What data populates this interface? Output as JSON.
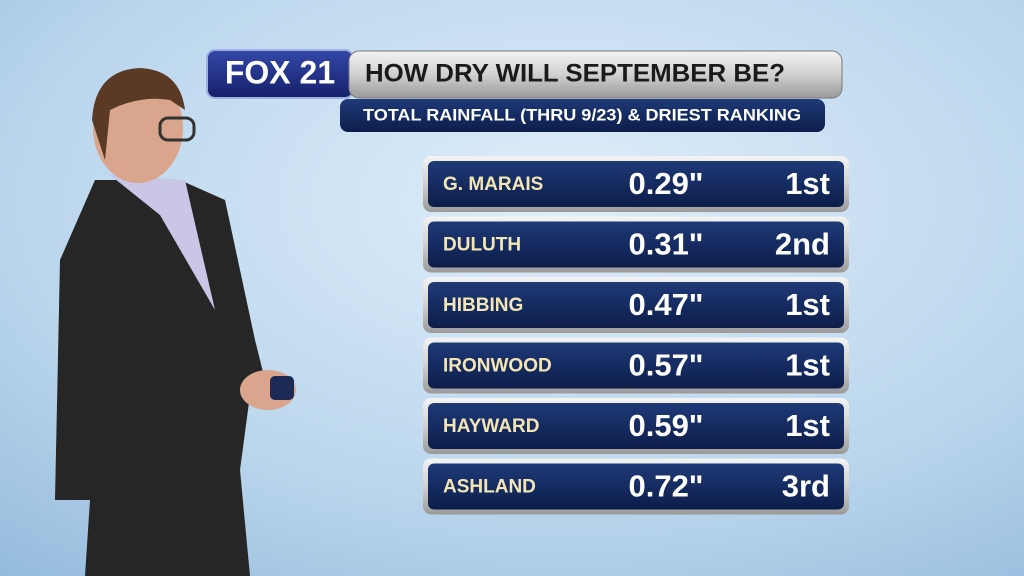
{
  "header": {
    "logo": "FOX 21",
    "title": "HOW DRY WILL SEPTEMBER BE?",
    "subtitle": "TOTAL RAINFALL (THRU 9/23) & DRIEST RANKING"
  },
  "table": {
    "rows": [
      [
        "G. MARAIS",
        "0.29\"",
        "1st"
      ],
      [
        "DULUTH",
        "0.31\"",
        "2nd"
      ],
      [
        "HIBBING",
        "0.47\"",
        "1st"
      ],
      [
        "IRONWOOD",
        "0.57\"",
        "1st"
      ],
      [
        "HAYWARD",
        "0.59\"",
        "1st"
      ],
      [
        "ASHLAND",
        "0.72\"",
        "3rd"
      ]
    ]
  }
}
